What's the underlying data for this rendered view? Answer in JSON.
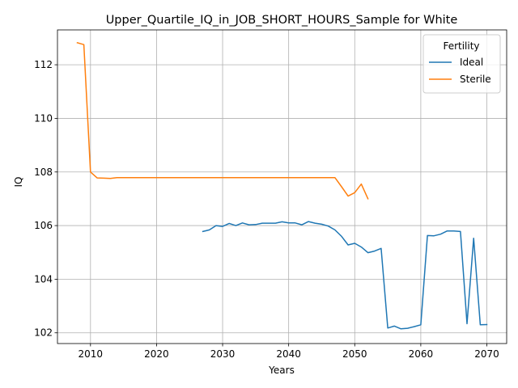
{
  "chart_data": {
    "type": "line",
    "title": "Upper_Quartile_IQ_in_JOB_SHORT_HOURS_Sample for White",
    "xlabel": "Years",
    "ylabel": "IQ",
    "xlim": [
      2005,
      2073
    ],
    "ylim": [
      101.6,
      113.3
    ],
    "xticks": [
      2010,
      2020,
      2030,
      2040,
      2050,
      2060,
      2070
    ],
    "yticks": [
      102,
      104,
      106,
      108,
      110,
      112
    ],
    "grid": true,
    "legend": {
      "title": "Fertility",
      "placement": "top-right"
    },
    "series": [
      {
        "name": "Ideal",
        "color": "#1f77b4",
        "x": [
          2027,
          2028,
          2029,
          2030,
          2031,
          2032,
          2033,
          2034,
          2035,
          2036,
          2037,
          2038,
          2039,
          2040,
          2041,
          2042,
          2043,
          2044,
          2045,
          2046,
          2047,
          2048,
          2049,
          2050,
          2051,
          2052,
          2053,
          2054,
          2055,
          2056,
          2057,
          2058,
          2059,
          2060,
          2061,
          2062,
          2063,
          2064,
          2065,
          2066,
          2067,
          2068,
          2069,
          2070
        ],
        "y": [
          105.78,
          105.84,
          106.0,
          105.97,
          106.08,
          106.0,
          106.1,
          106.03,
          106.04,
          106.09,
          106.09,
          106.09,
          106.14,
          106.1,
          106.1,
          106.03,
          106.15,
          106.09,
          106.05,
          105.98,
          105.84,
          105.6,
          105.28,
          105.34,
          105.2,
          104.99,
          105.05,
          105.15,
          102.18,
          102.25,
          102.15,
          102.17,
          102.23,
          102.3,
          105.63,
          105.62,
          105.68,
          105.8,
          105.8,
          105.78,
          102.34,
          105.53,
          102.3,
          102.31
        ]
      },
      {
        "name": "Sterile",
        "color": "#ff7f0e",
        "x": [
          2008,
          2009,
          2010,
          2011,
          2012,
          2013,
          2014,
          2015,
          2016,
          2017,
          2018,
          2019,
          2020,
          2021,
          2022,
          2023,
          2024,
          2025,
          2026,
          2027,
          2028,
          2029,
          2030,
          2031,
          2032,
          2033,
          2034,
          2035,
          2036,
          2037,
          2038,
          2039,
          2040,
          2041,
          2042,
          2043,
          2044,
          2045,
          2046,
          2047,
          2048,
          2049,
          2050,
          2051,
          2052
        ],
        "y": [
          112.82,
          112.75,
          108.0,
          107.78,
          107.77,
          107.76,
          107.79,
          107.79,
          107.79,
          107.79,
          107.79,
          107.79,
          107.79,
          107.79,
          107.79,
          107.79,
          107.79,
          107.79,
          107.79,
          107.79,
          107.79,
          107.79,
          107.79,
          107.79,
          107.79,
          107.79,
          107.79,
          107.79,
          107.79,
          107.79,
          107.79,
          107.79,
          107.79,
          107.79,
          107.79,
          107.79,
          107.79,
          107.79,
          107.79,
          107.79,
          107.45,
          107.1,
          107.23,
          107.55,
          107.0
        ]
      }
    ]
  }
}
